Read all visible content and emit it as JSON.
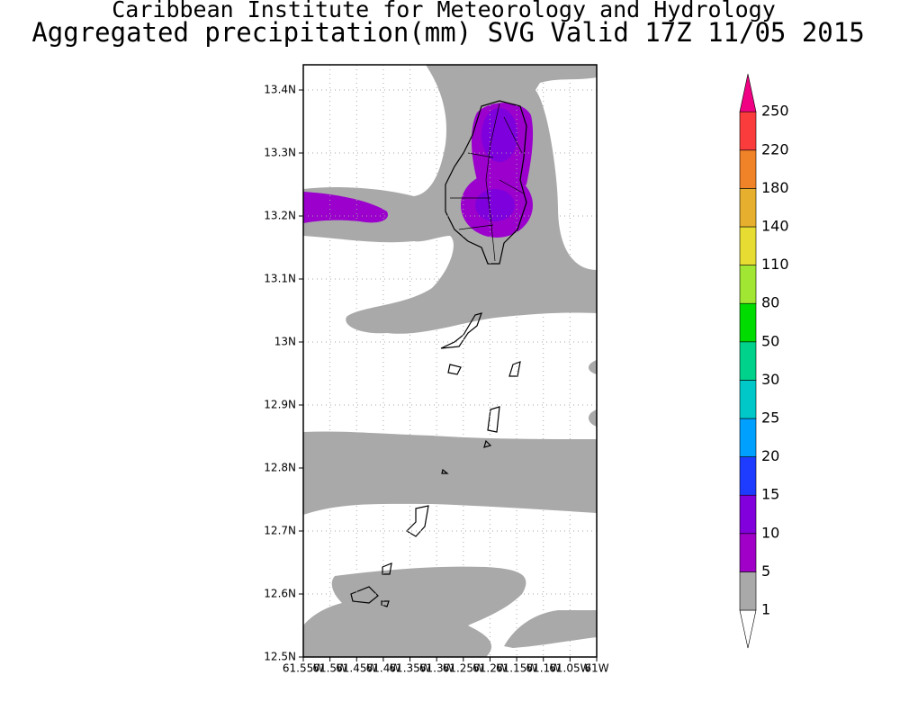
{
  "header": {
    "title": "Caribbean Institute for Meteorology and Hydrology",
    "subtitle": "Aggregated precipitation(mm) SVG Valid 17Z 11/05 2015"
  },
  "map": {
    "y_labels": [
      "13.4N",
      "13.3N",
      "13.2N",
      "13.1N",
      "13N",
      "12.9N",
      "12.8N",
      "12.7N",
      "12.6N",
      "12.5N"
    ],
    "x_labels": [
      "61.55W",
      "61.5W",
      "61.45W",
      "61.4W",
      "61.35W",
      "61.3W",
      "61.25W",
      "61.2W",
      "61.15W",
      "61.1W",
      "61.05W",
      "61W"
    ]
  },
  "legend": {
    "levels": [
      1,
      5,
      10,
      15,
      20,
      25,
      30,
      50,
      80,
      110,
      140,
      180,
      220,
      250
    ],
    "colors": [
      "#ffffff",
      "#a9a9a9",
      "#a000c8",
      "#8200dc",
      "#1e3cff",
      "#00a0ff",
      "#00c8c8",
      "#00d28c",
      "#00dc00",
      "#a0e632",
      "#e6dc32",
      "#e6af2d",
      "#f08228",
      "#fa3c3c",
      "#f00082"
    ]
  }
}
